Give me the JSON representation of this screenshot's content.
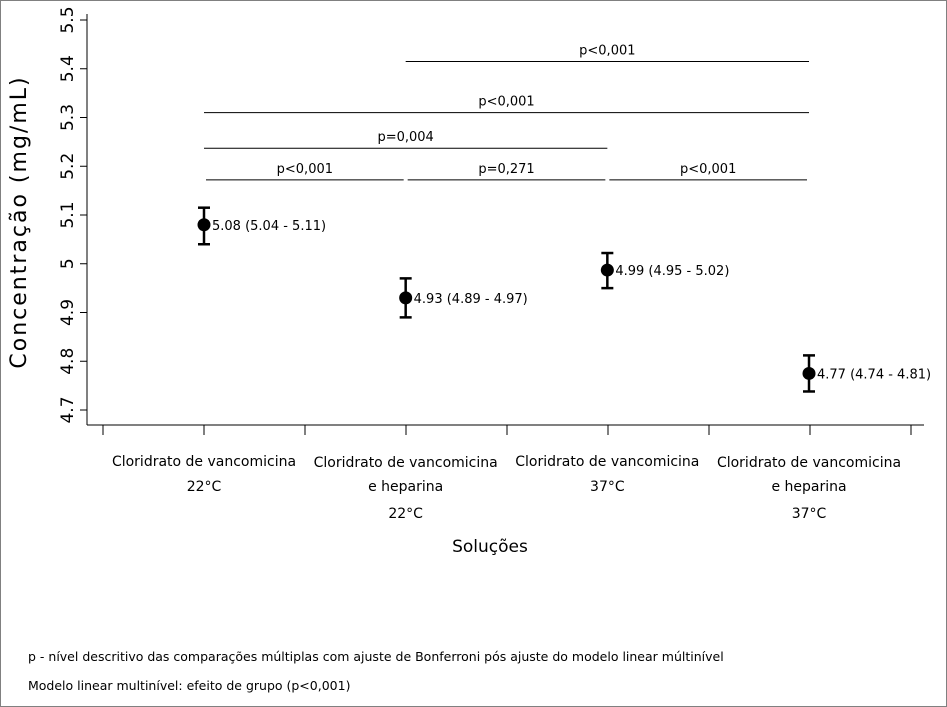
{
  "chart_data": {
    "type": "scatter",
    "xlabel": "Soluções",
    "ylabel": "Concentração (mg/mL)",
    "ylim": [
      4.7,
      5.5
    ],
    "yticks": [
      "4.7",
      "4.8",
      "4.9",
      "5",
      "5.1",
      "5.2",
      "5.3",
      "5.4",
      "5.5"
    ],
    "categories": [
      {
        "lines": [
          "Cloridrato de vancomicina",
          "22°C"
        ]
      },
      {
        "lines": [
          "Cloridrato de vancomicina",
          "e heparina",
          "22°C"
        ]
      },
      {
        "lines": [
          "Cloridrato de vancomicina",
          "37°C"
        ]
      },
      {
        "lines": [
          "Cloridrato de vancomicina",
          "e heparina",
          "37°C"
        ]
      }
    ],
    "points": [
      {
        "x": 1,
        "y": 5.08,
        "lo": 5.04,
        "hi": 5.115,
        "label": "5.08 (5.04 - 5.11)"
      },
      {
        "x": 2,
        "y": 4.93,
        "lo": 4.89,
        "hi": 4.97,
        "label": "4.93 (4.89 - 4.97)"
      },
      {
        "x": 3,
        "y": 4.987,
        "lo": 4.95,
        "hi": 5.022,
        "label": "4.99 (4.95 - 5.02)"
      },
      {
        "x": 4,
        "y": 4.775,
        "lo": 4.738,
        "hi": 4.812,
        "label": "4.77 (4.74 -  4.81)"
      }
    ],
    "comparisons": [
      {
        "from": 1,
        "to": 2,
        "y": 5.172,
        "label": "p<0,001"
      },
      {
        "from": 2,
        "to": 3,
        "y": 5.172,
        "label": "p=0,271"
      },
      {
        "from": 3,
        "to": 4,
        "y": 5.172,
        "label": "p<0,001"
      },
      {
        "from": 1,
        "to": 3,
        "y": 5.237,
        "label": "p=0,004"
      },
      {
        "from": 1,
        "to": 4,
        "y": 5.31,
        "label": "p<0,001"
      },
      {
        "from": 2,
        "to": 4,
        "y": 5.415,
        "label": "p<0,001"
      }
    ]
  },
  "footnotes": [
    "p - nível descritivo das comparações múltiplas com ajuste de Bonferroni pós ajuste do modelo linear múltinível",
    "Modelo linear multinível: efeito de grupo (p<0,001)"
  ]
}
